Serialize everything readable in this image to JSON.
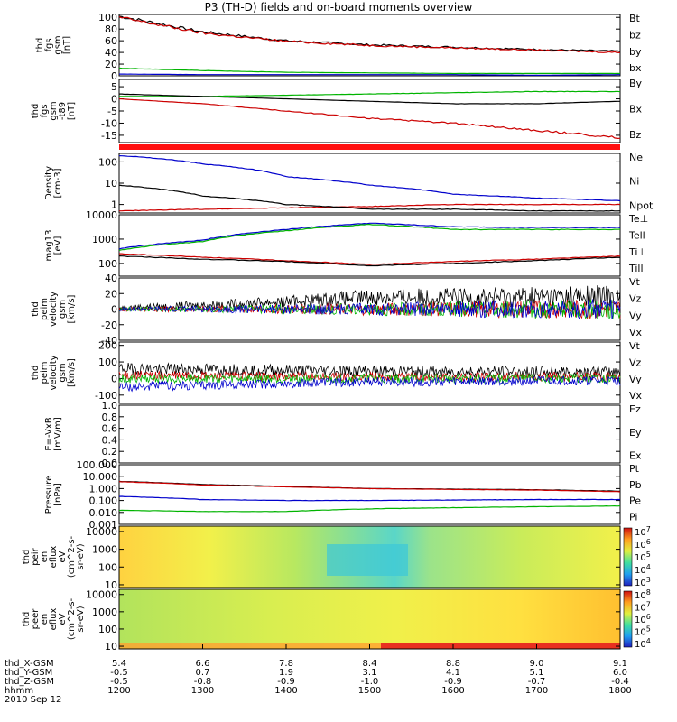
{
  "title": "P3 (TH-D) fields and on-board moments overview",
  "panels": [
    {
      "id": "p1",
      "ylabel": [
        "thd",
        "fgs",
        "gsm",
        "[nT]"
      ],
      "ticks": [
        "100",
        "80",
        "60",
        "40",
        "20",
        "0"
      ],
      "tick_values": [
        100,
        80,
        60,
        40,
        20,
        0
      ],
      "ylim": [
        0,
        105
      ],
      "legend": [
        {
          "label": "Bt",
          "color": "#000000"
        },
        {
          "label": "bz",
          "color": "#cc0000"
        },
        {
          "label": "by",
          "color": "#00b400"
        },
        {
          "label": "bx",
          "color": "#0000cc"
        }
      ]
    },
    {
      "id": "p2",
      "ylabel": [
        "thd",
        "fgs",
        "gsm",
        "-t89",
        "[nT]"
      ],
      "ticks": [
        "5",
        "0",
        "-5",
        "-10",
        "-15"
      ],
      "tick_values": [
        5,
        0,
        -5,
        -10,
        -15
      ],
      "ylim": [
        -18,
        8
      ],
      "legend": [
        {
          "label": "By",
          "color": "#00b400"
        },
        {
          "label": "Bx",
          "color": "#000000"
        },
        {
          "label": "Bz",
          "color": "#cc0000"
        }
      ]
    },
    {
      "id": "p3",
      "ylabel": [
        "Density",
        "[cm-3]"
      ],
      "ticks": [
        "100",
        "10",
        "1"
      ],
      "tick_values": [
        100,
        10,
        1
      ],
      "ylim": [
        0.4,
        250
      ],
      "log": true,
      "legend": [
        {
          "label": "Ne",
          "color": "#cc0000"
        },
        {
          "label": "Ni",
          "color": "#000000"
        },
        {
          "label": "Npot",
          "color": "#0000cc"
        }
      ]
    },
    {
      "id": "p4",
      "ylabel": [
        "mag13",
        "[eV]"
      ],
      "ticks": [
        "10000",
        "1000",
        "100"
      ],
      "tick_values": [
        10000,
        1000,
        100
      ],
      "ylim": [
        30,
        10000
      ],
      "log": true,
      "legend": [
        {
          "label": "Te⊥",
          "color": "#cc0000"
        },
        {
          "label": "Tell",
          "color": "#000000"
        },
        {
          "label": "Ti⊥",
          "color": "#cc0000"
        },
        {
          "label": "Till",
          "color": "#00b400"
        }
      ]
    },
    {
      "id": "p5",
      "ylabel": [
        "thd",
        "peim",
        "velocity",
        "gsm",
        "[km/s]"
      ],
      "ticks": [
        "40",
        "20",
        "0",
        "-20",
        "-40"
      ],
      "tick_values": [
        40,
        20,
        0,
        -20,
        -40
      ],
      "ylim": [
        -40,
        40
      ],
      "legend": [
        {
          "label": "Vt",
          "color": "#000000"
        },
        {
          "label": "Vz",
          "color": "#cc0000"
        },
        {
          "label": "Vy",
          "color": "#00b400"
        },
        {
          "label": "Vx",
          "color": "#0000cc"
        }
      ]
    },
    {
      "id": "p6",
      "ylabel": [
        "thd",
        "peim",
        "velocity",
        "gsm",
        "[km/s]"
      ],
      "ticks": [
        "200",
        "100",
        "0",
        "-100"
      ],
      "tick_values": [
        200,
        100,
        0,
        -100
      ],
      "ylim": [
        -150,
        220
      ],
      "legend": [
        {
          "label": "Vt",
          "color": "#000000"
        },
        {
          "label": "Vz",
          "color": "#cc0000"
        },
        {
          "label": "Vy",
          "color": "#00b400"
        },
        {
          "label": "Vx",
          "color": "#0000cc"
        }
      ]
    },
    {
      "id": "p7",
      "ylabel": [
        "E=-VxB",
        "[mV/m]"
      ],
      "ticks": [
        "1.0",
        "0.8",
        "0.6",
        "0.4",
        "0.2",
        "0.0"
      ],
      "tick_values": [
        1.0,
        0.8,
        0.6,
        0.4,
        0.2,
        0.0
      ],
      "ylim": [
        0,
        1
      ],
      "legend": [
        {
          "label": "Ez",
          "color": "#cc0000"
        },
        {
          "label": "Ey",
          "color": "#00b400"
        },
        {
          "label": "Ex",
          "color": "#0000cc"
        }
      ]
    },
    {
      "id": "p8",
      "ylabel": [
        "Pressure",
        "[nPa]"
      ],
      "ticks": [
        "100.000",
        "10.000",
        "1.000",
        "0.100",
        "0.010",
        "0.001"
      ],
      "tick_values": [
        100,
        10,
        1,
        0.1,
        0.01,
        0.001
      ],
      "ylim": [
        0.001,
        100
      ],
      "log": true,
      "legend": [
        {
          "label": "Pt",
          "color": "#000000"
        },
        {
          "label": "Pb",
          "color": "#cc0000"
        },
        {
          "label": "Pe",
          "color": "#00b400"
        },
        {
          "label": "Pi",
          "color": "#0000cc"
        }
      ]
    },
    {
      "id": "p9",
      "ylabel": [
        "thd",
        "peir",
        "en",
        "eflux",
        "eV",
        "(cm^2-s-",
        "sr-eV)"
      ],
      "ticks": [
        "10000",
        "1000",
        "100",
        "10"
      ],
      "tick_values": [
        10000,
        1000,
        100,
        10
      ],
      "ylim": [
        7,
        20000
      ],
      "log": true,
      "colorbar_ticks": [
        "10^7",
        "10^6",
        "10^5",
        "10^4",
        "10^3"
      ]
    },
    {
      "id": "p10",
      "ylabel": [
        "thd",
        "peer",
        "en",
        "eflux",
        "eV",
        "(cm^2-s-",
        "sr-eV)"
      ],
      "ticks": [
        "10000",
        "1000",
        "100",
        "10"
      ],
      "tick_values": [
        10000,
        1000,
        100,
        10
      ],
      "ylim": [
        7,
        20000
      ],
      "log": true,
      "colorbar_ticks": [
        "10^8",
        "10^7",
        "10^6",
        "10^5",
        "10^4"
      ]
    }
  ],
  "xaxis": {
    "rows": [
      {
        "label": "thd_X-GSM",
        "values": [
          "5.4",
          "6.6",
          "7.8",
          "8.4",
          "8.8",
          "9.0",
          "9.1"
        ]
      },
      {
        "label": "thd_Y-GSM",
        "values": [
          "-0.5",
          "0.7",
          "1.9",
          "3.1",
          "4.1",
          "5.1",
          "6.0"
        ]
      },
      {
        "label": "thd_Z-GSM",
        "values": [
          "-0.5",
          "-0.8",
          "-0.9",
          "-1.0",
          "-0.9",
          "-0.7",
          "-0.4"
        ]
      },
      {
        "label": "hhmm",
        "values": [
          "1200",
          "1300",
          "1400",
          "1500",
          "1600",
          "1700",
          "1800"
        ]
      }
    ],
    "date": "2010 Sep 12"
  },
  "chart_data": {
    "type": "line",
    "title": "P3 (TH-D) fields and on-board moments overview",
    "x": [
      "1200",
      "1300",
      "1400",
      "1500",
      "1600",
      "1700",
      "1800"
    ],
    "panels": [
      {
        "name": "fgs gsm",
        "series": [
          {
            "name": "Bt",
            "values": [
              102,
              75,
              60,
              53,
              49,
              45,
              42
            ]
          },
          {
            "name": "bz",
            "values": [
              100,
              73,
              59,
              52,
              48,
              44,
              40
            ]
          },
          {
            "name": "by",
            "values": [
              13,
              9,
              6,
              5,
              4,
              4,
              4
            ]
          },
          {
            "name": "bx",
            "values": [
              3,
              2,
              2,
              2,
              2,
              1,
              2
            ]
          }
        ]
      },
      {
        "name": "fgs gsm -t89",
        "series": [
          {
            "name": "By",
            "values": [
              1,
              1,
              1.5,
              2,
              2.5,
              3,
              3
            ]
          },
          {
            "name": "Bx",
            "values": [
              2,
              1,
              0,
              -1,
              -2,
              -2,
              -1
            ]
          },
          {
            "name": "Bz",
            "values": [
              0,
              -2,
              -5,
              -8,
              -10,
              -13,
              -16
            ]
          }
        ]
      },
      {
        "name": "Density",
        "series": [
          {
            "name": "Ne",
            "values": [
              0.5,
              0.6,
              0.7,
              0.8,
              1.0,
              1.0,
              1.0
            ]
          },
          {
            "name": "Ni",
            "values": [
              8,
              2.5,
              1.0,
              0.6,
              0.6,
              0.5,
              0.5
            ]
          },
          {
            "name": "Npot",
            "values": [
              200,
              80,
              20,
              8,
              3,
              2,
              1.5
            ]
          }
        ]
      },
      {
        "name": "mag13",
        "series": [
          {
            "name": "Te⊥",
            "values": [
              250,
              180,
              130,
              90,
              120,
              150,
              200
            ]
          },
          {
            "name": "Tell",
            "values": [
              200,
              150,
              120,
              80,
              100,
              130,
              180
            ]
          },
          {
            "name": "Ti⊥",
            "values": [
              400,
              900,
              2500,
              4500,
              3200,
              3000,
              3000
            ]
          },
          {
            "name": "Till",
            "values": [
              350,
              800,
              2200,
              4000,
              2500,
              2500,
              2500
            ]
          }
        ]
      },
      {
        "name": "velocity gsm",
        "series": [
          {
            "name": "Vt",
            "values": [
              2,
              5,
              10,
              15,
              15,
              15,
              15
            ]
          },
          {
            "name": "Vz",
            "values": [
              0,
              0,
              0,
              0,
              0,
              0,
              0
            ]
          },
          {
            "name": "Vy",
            "values": [
              0,
              0,
              0,
              0,
              0,
              0,
              0
            ]
          },
          {
            "name": "Vx",
            "values": [
              0,
              0,
              0,
              0,
              0,
              0,
              0
            ]
          }
        ]
      },
      {
        "name": "velocity gsm 2",
        "series": [
          {
            "name": "Vt",
            "values": [
              60,
              55,
              50,
              45,
              40,
              40,
              40
            ]
          },
          {
            "name": "Vz",
            "values": [
              20,
              15,
              10,
              10,
              10,
              10,
              10
            ]
          },
          {
            "name": "Vy",
            "values": [
              0,
              0,
              0,
              0,
              0,
              0,
              0
            ]
          },
          {
            "name": "Vx",
            "values": [
              -50,
              -40,
              -30,
              -20,
              -20,
              -15,
              -15
            ]
          }
        ]
      },
      {
        "name": "Pressure",
        "series": [
          {
            "name": "Pt",
            "values": [
              4.0,
              2.2,
              1.5,
              1.0,
              0.9,
              0.8,
              0.6
            ]
          },
          {
            "name": "Pb",
            "values": [
              3.8,
              2.0,
              1.4,
              1.0,
              0.85,
              0.75,
              0.55
            ]
          },
          {
            "name": "Pe",
            "values": [
              0.015,
              0.012,
              0.012,
              0.02,
              0.025,
              0.03,
              0.035
            ]
          },
          {
            "name": "Pi",
            "values": [
              0.22,
              0.12,
              0.1,
              0.1,
              0.11,
              0.12,
              0.12
            ]
          }
        ]
      }
    ]
  }
}
